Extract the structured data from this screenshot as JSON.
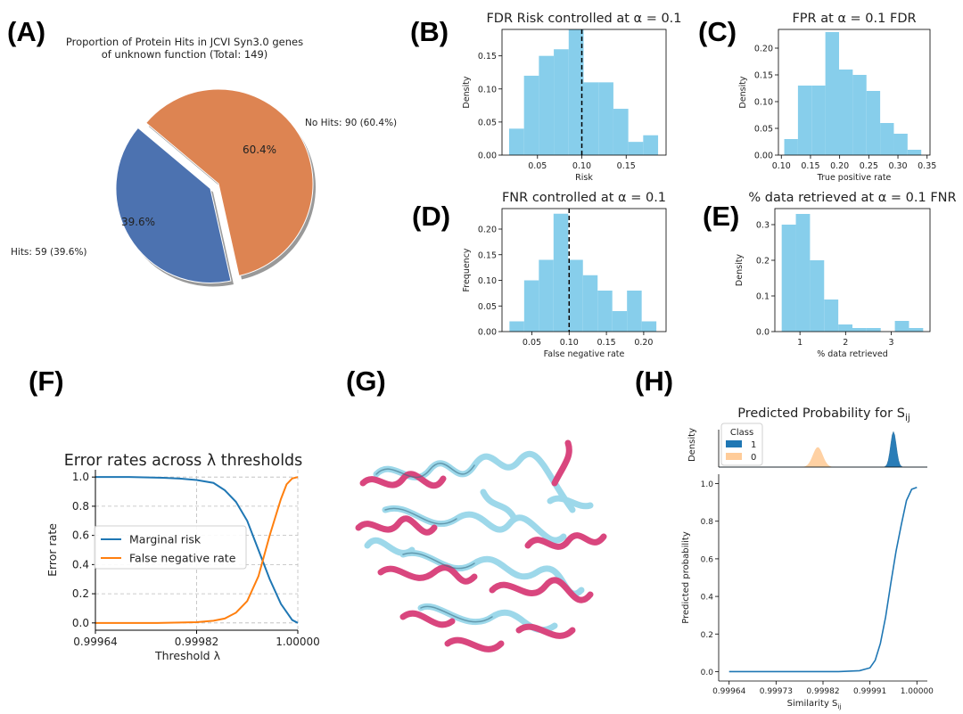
{
  "panel_labels": [
    "(A)",
    "(B)",
    "(C)",
    "(D)",
    "(E)",
    "(F)",
    "(G)",
    "(H)"
  ],
  "colors": {
    "hist": "#87ceeb",
    "pie_hits": "#4c72b0",
    "pie_nohits": "#dd8452",
    "blue": "#1f77b4",
    "orange": "#ff7f0e",
    "class0": "#ffcc99",
    "ribbon_pink": "#d9467e",
    "ribbon_cyan": "#9dd8ea"
  },
  "chart_data": [
    {
      "id": "A",
      "type": "pie",
      "title_lines": [
        "Proportion of Protein Hits in JCVI Syn3.0 genes",
        "of unknown function (Total: 149)"
      ],
      "slices": [
        {
          "label": "Hits: 59 (39.6%)",
          "value": 59,
          "pct_label": "39.6%",
          "explode": true
        },
        {
          "label": "No Hits: 90 (60.4%)",
          "value": 90,
          "pct_label": "60.4%",
          "explode": false
        }
      ]
    },
    {
      "id": "B",
      "type": "bar",
      "title": "FDR Risk controlled at α = 0.1",
      "xlabel": "Risk",
      "ylabel": "Density",
      "xlim": [
        0.01,
        0.195
      ],
      "ylim": [
        0,
        0.19
      ],
      "xticks": [
        "0.05",
        "0.10",
        "0.15"
      ],
      "xtick_values": [
        0.05,
        0.1,
        0.15
      ],
      "yticks": [
        "0.00",
        "0.05",
        "0.10",
        "0.15"
      ],
      "ytick_values": [
        0,
        0.05,
        0.1,
        0.15
      ],
      "bin_start": 0.018,
      "bin_width": 0.0168,
      "values": [
        0.04,
        0.12,
        0.15,
        0.16,
        0.19,
        0.11,
        0.11,
        0.07,
        0.02,
        0.03
      ],
      "vline": 0.1
    },
    {
      "id": "C",
      "type": "bar",
      "title": "FPR at α = 0.1 FDR",
      "xlabel": "True positive rate",
      "ylabel": "Density",
      "xlim": [
        0.095,
        0.355
      ],
      "ylim": [
        0,
        0.235
      ],
      "xticks": [
        "0.10",
        "0.15",
        "0.20",
        "0.25",
        "0.30",
        "0.35"
      ],
      "xtick_values": [
        0.1,
        0.15,
        0.2,
        0.25,
        0.3,
        0.35
      ],
      "yticks": [
        "0.00",
        "0.05",
        "0.10",
        "0.15",
        "0.20"
      ],
      "ytick_values": [
        0,
        0.05,
        0.1,
        0.15,
        0.2
      ],
      "bin_start": 0.105,
      "bin_width": 0.0235,
      "values": [
        0.03,
        0.13,
        0.13,
        0.23,
        0.16,
        0.15,
        0.12,
        0.06,
        0.04,
        0.01
      ],
      "vline": null
    },
    {
      "id": "D",
      "type": "bar",
      "title": "FNR controlled at α = 0.1",
      "xlabel": "False negative rate",
      "ylabel": "Frequency",
      "xlim": [
        0.01,
        0.23
      ],
      "ylim": [
        0,
        0.24
      ],
      "xticks": [
        "0.05",
        "0.10",
        "0.15",
        "0.20"
      ],
      "xtick_values": [
        0.05,
        0.1,
        0.15,
        0.2
      ],
      "yticks": [
        "0.00",
        "0.05",
        "0.10",
        "0.15",
        "0.20"
      ],
      "ytick_values": [
        0,
        0.05,
        0.1,
        0.15,
        0.2
      ],
      "bin_start": 0.02,
      "bin_width": 0.0197,
      "values": [
        0.02,
        0.1,
        0.14,
        0.23,
        0.14,
        0.11,
        0.08,
        0.04,
        0.08,
        0.02
      ],
      "vline": 0.1
    },
    {
      "id": "E",
      "type": "bar",
      "title": "% data retrieved at α = 0.1 FNR",
      "xlabel": "% data retrieved",
      "ylabel": "Density",
      "xlim": [
        0.45,
        3.85
      ],
      "ylim": [
        0,
        0.345
      ],
      "xticks": [
        "1",
        "2",
        "3"
      ],
      "xtick_values": [
        1,
        2,
        3
      ],
      "yticks": [
        "0.0",
        "0.1",
        "0.2",
        "0.3"
      ],
      "ytick_values": [
        0,
        0.1,
        0.2,
        0.3
      ],
      "bin_start": 0.6,
      "bin_width": 0.31,
      "values": [
        0.3,
        0.33,
        0.2,
        0.09,
        0.02,
        0.01,
        0.01,
        0.0,
        0.03,
        0.01
      ],
      "vline": null
    },
    {
      "id": "F",
      "type": "line",
      "title": "Error rates across λ thresholds",
      "xlabel": "Threshold λ",
      "ylabel": "Error rate",
      "xlim": [
        0.99964,
        1.0
      ],
      "ylim": [
        -0.05,
        1.05
      ],
      "xticks": [
        "0.99964",
        "0.99982",
        "1.00000"
      ],
      "xtick_values": [
        0.99964,
        0.99982,
        1.0
      ],
      "yticks": [
        "0.0",
        "0.2",
        "0.4",
        "0.6",
        "0.8",
        "1.0"
      ],
      "ytick_values": [
        0,
        0.2,
        0.4,
        0.6,
        0.8,
        1.0
      ],
      "grid": true,
      "legend": "center-left",
      "series": [
        {
          "name": "Marginal risk",
          "x": [
            0.99964,
            0.9997,
            0.99976,
            0.99979,
            0.99982,
            0.99985,
            0.99987,
            0.99989,
            0.99991,
            0.99993,
            0.99995,
            0.99997,
            0.99999,
            1.0
          ],
          "y": [
            1.0,
            1.0,
            0.995,
            0.99,
            0.98,
            0.96,
            0.91,
            0.83,
            0.7,
            0.5,
            0.3,
            0.13,
            0.02,
            0.0
          ]
        },
        {
          "name": "False negative rate",
          "x": [
            0.99964,
            0.99975,
            0.99982,
            0.99985,
            0.99987,
            0.99989,
            0.99991,
            0.99993,
            0.99995,
            0.99997,
            0.99998,
            0.99999,
            1.0
          ],
          "y": [
            0.0,
            0.0,
            0.005,
            0.015,
            0.03,
            0.07,
            0.15,
            0.32,
            0.6,
            0.85,
            0.95,
            0.99,
            1.0
          ]
        }
      ]
    },
    {
      "id": "H_top",
      "type": "area",
      "title": "Predicted Probability for S_ij",
      "title_main": "Predicted Probability for S",
      "title_sub": "ij",
      "ylabel": "Density",
      "legend_title": "Class",
      "xlim": [
        0.99962,
        1.00002
      ],
      "series": [
        {
          "name": "1",
          "mean": 0.999955,
          "sd": 5.5e-06,
          "scale": 1.0
        },
        {
          "name": "0",
          "mean": 0.99981,
          "sd": 9.5e-06,
          "scale": 0.56
        }
      ]
    },
    {
      "id": "H",
      "type": "line",
      "xlabel_main": "Similarity S",
      "xlabel_sub": "ij",
      "ylabel": "Predicted probability",
      "xlim": [
        0.99962,
        1.00002
      ],
      "ylim": [
        -0.05,
        1.05
      ],
      "xticks": [
        "0.99964",
        "0.99973",
        "0.99982",
        "0.99991",
        "1.00000"
      ],
      "xtick_values": [
        0.99964,
        0.99973,
        0.99982,
        0.99991,
        1.0
      ],
      "yticks": [
        "0.0",
        "0.2",
        "0.4",
        "0.6",
        "0.8",
        "1.0"
      ],
      "ytick_values": [
        0,
        0.2,
        0.4,
        0.6,
        0.8,
        1.0
      ],
      "series": [
        {
          "name": "",
          "x": [
            0.99964,
            0.99975,
            0.99985,
            0.99989,
            0.99991,
            0.99992,
            0.99993,
            0.99994,
            0.99995,
            0.99996,
            0.99997,
            0.99998,
            0.99999,
            1.0
          ],
          "y": [
            0.0,
            0.0,
            0.0,
            0.005,
            0.02,
            0.06,
            0.15,
            0.29,
            0.47,
            0.64,
            0.78,
            0.91,
            0.97,
            0.98
          ]
        }
      ]
    }
  ]
}
